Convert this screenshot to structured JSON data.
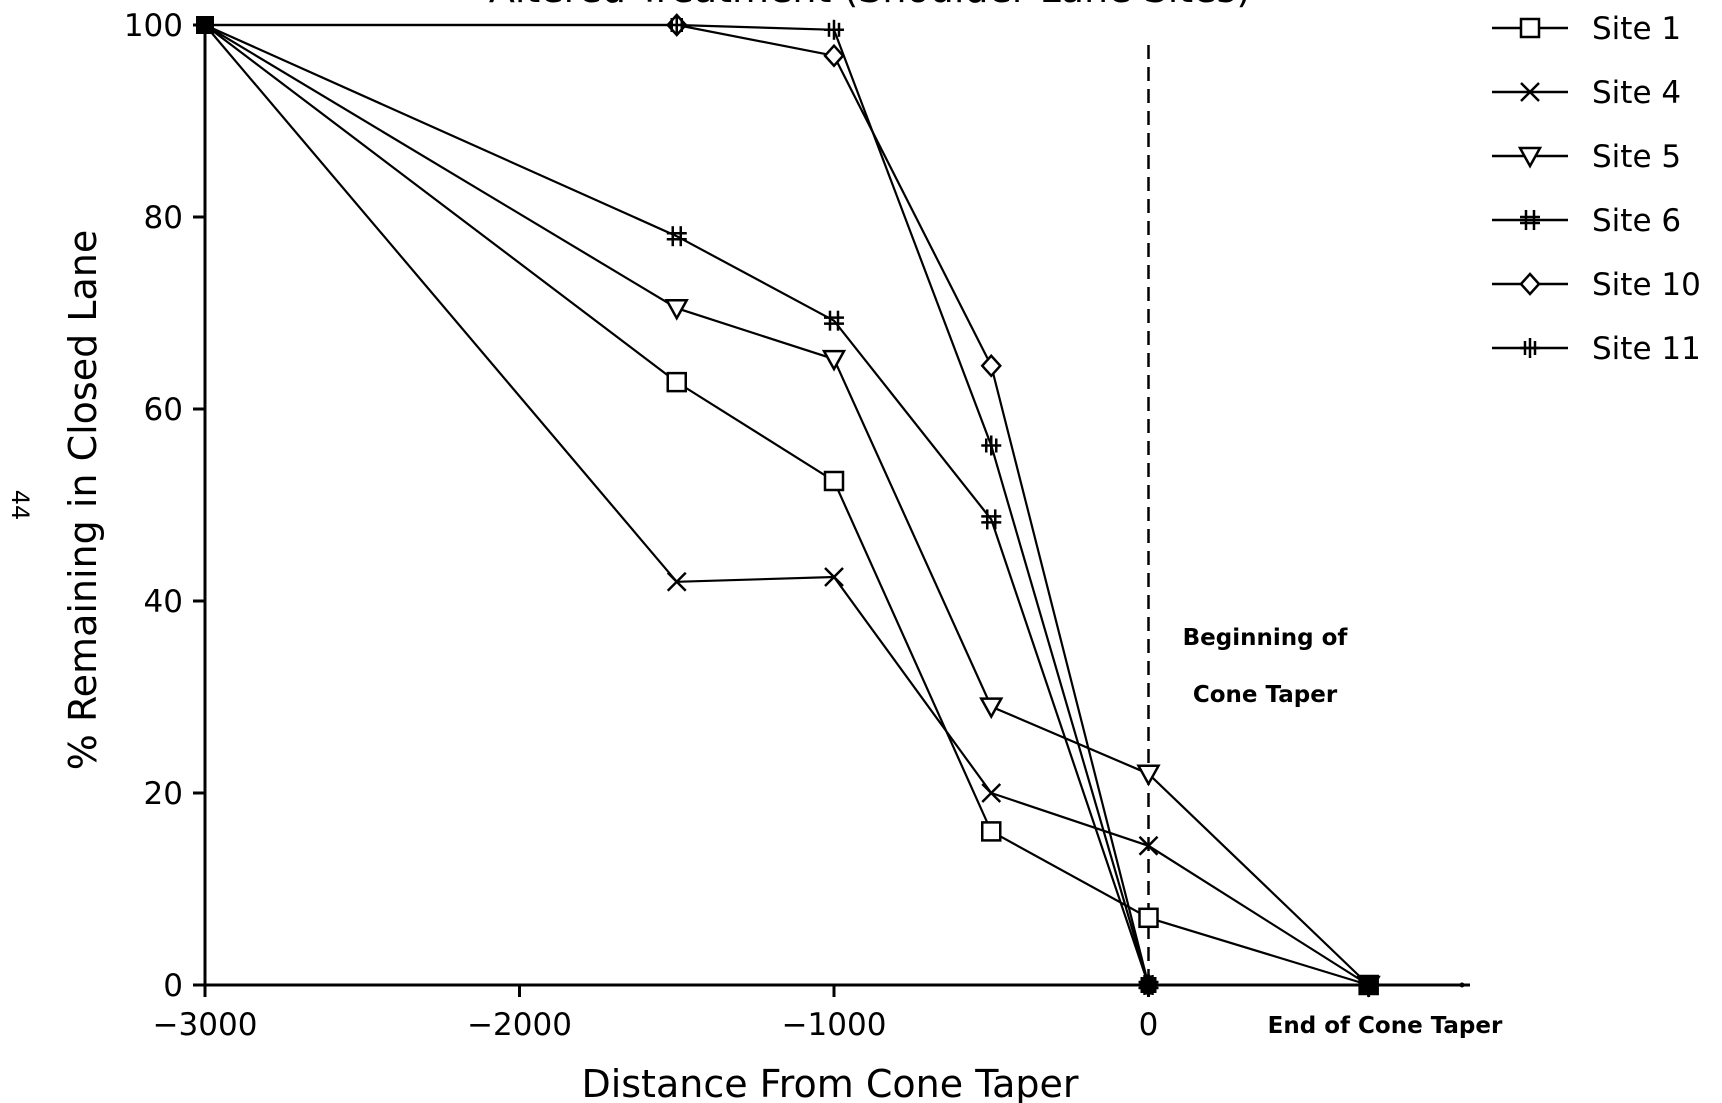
{
  "page_number": "44",
  "chart_data": {
    "type": "line",
    "title": "Altered Treatment (Shoulder Lane Sites)",
    "xlabel": "Distance From Cone Taper",
    "ylabel": "% Remaining in Closed Lane",
    "xlim": [
      -3000,
      1000
    ],
    "ylim": [
      0,
      100
    ],
    "x_ticks": [
      -3000,
      -2000,
      -1000,
      0
    ],
    "x_tick_labels": [
      "−3000",
      "−2000",
      "−1000",
      "0"
    ],
    "y_ticks": [
      0,
      20,
      40,
      60,
      80,
      100
    ],
    "y_tick_labels": [
      "0",
      "20",
      "40",
      "60",
      "80",
      "100"
    ],
    "grid": false,
    "legend_position": "top-right",
    "reference_line": {
      "x": 0,
      "style": "dashed"
    },
    "annotations": {
      "begin_taper_line1": "Beginning of",
      "begin_taper_line2": "Cone Taper",
      "end_taper": "End of Cone Taper"
    },
    "end_taper_x": 700,
    "series": [
      {
        "name": "Site 1",
        "marker": "square",
        "x": [
          -3000,
          -1500,
          -1000,
          -500,
          0,
          700
        ],
        "y": [
          100,
          62.8,
          52.5,
          16,
          7,
          0
        ]
      },
      {
        "name": "Site 4",
        "marker": "x",
        "x": [
          -3000,
          -1500,
          -1000,
          -500,
          0,
          700
        ],
        "y": [
          100,
          42,
          42.5,
          20,
          14.5,
          0
        ]
      },
      {
        "name": "Site 5",
        "marker": "triangle-down",
        "x": [
          -3000,
          -1500,
          -1000,
          -500,
          0,
          700
        ],
        "y": [
          100,
          70.5,
          65.2,
          29,
          22,
          0
        ]
      },
      {
        "name": "Site 6",
        "marker": "hash",
        "x": [
          -3000,
          -1500,
          -1000,
          -500,
          0
        ],
        "y": [
          100,
          78,
          69.2,
          48.5,
          0
        ]
      },
      {
        "name": "Site 10",
        "marker": "diamond",
        "x": [
          -3000,
          -1500,
          -1000,
          -500,
          0
        ],
        "y": [
          100,
          100,
          96.8,
          64.5,
          0
        ]
      },
      {
        "name": "Site 11",
        "marker": "cross",
        "x": [
          -3000,
          -1500,
          -1000,
          -500,
          0
        ],
        "y": [
          100,
          100,
          99.5,
          56.2,
          0
        ]
      }
    ]
  }
}
